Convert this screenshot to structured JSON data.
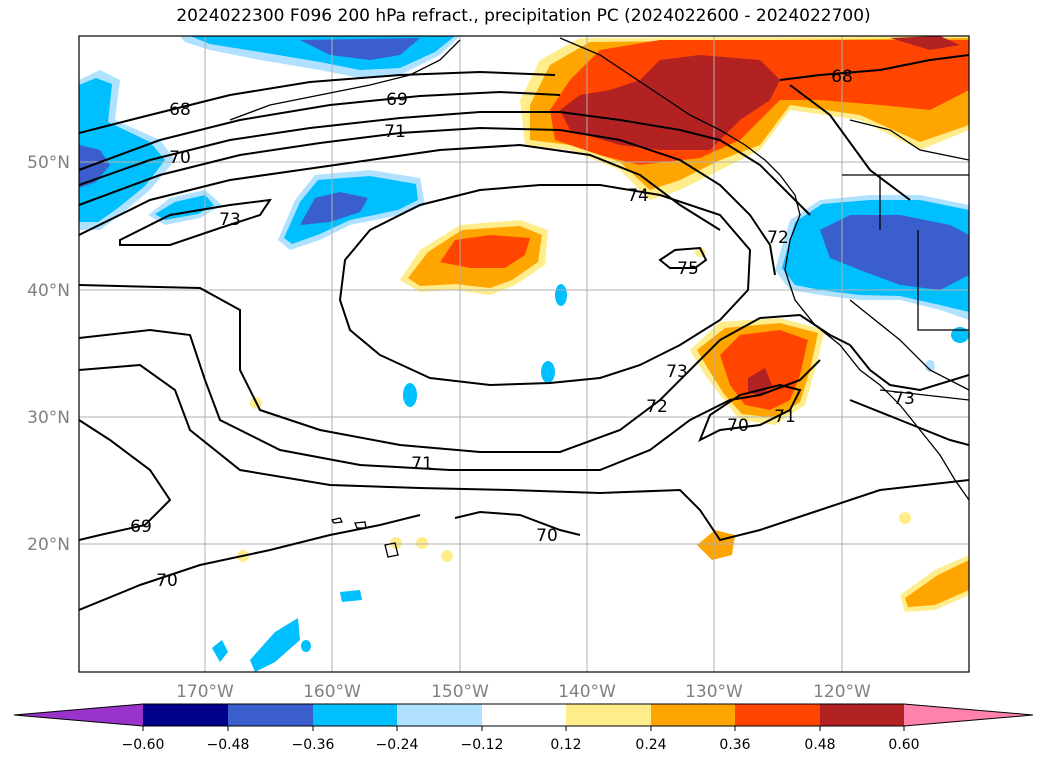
{
  "title": "2024022300 F096 200 hPa refract., precipitation PC (2024022600 - 2024022700)",
  "axes": {
    "lat_labels": [
      "50°N",
      "40°N",
      "30°N",
      "20°N"
    ],
    "lon_labels": [
      "170°W",
      "160°W",
      "150°W",
      "140°W",
      "130°W",
      "120°W"
    ]
  },
  "contour_labels": [
    "68",
    "69",
    "70",
    "71",
    "73",
    "74",
    "75",
    "72",
    "73",
    "72",
    "71",
    "70",
    "71",
    "68",
    "73",
    "69",
    "70",
    "70"
  ],
  "colorbar": {
    "ticks": [
      "−0.60",
      "−0.48",
      "−0.36",
      "−0.24",
      "−0.12",
      "0.12",
      "0.24",
      "0.36",
      "0.48",
      "0.60"
    ],
    "colors": [
      "#9933cc",
      "#00008b",
      "#3a5fcd",
      "#00bfff",
      "#b0e2ff",
      "#ffffff",
      "#ffec8b",
      "#ffa500",
      "#ff4500",
      "#b22222",
      "#ff82ab"
    ]
  },
  "colors": {
    "neg_light": "#b0e2ff",
    "neg_mid": "#00bfff",
    "neg_strong": "#3a5fcd",
    "pos_light": "#ffec8b",
    "pos_mid": "#ffa500",
    "pos_strong": "#ff4500",
    "pos_max": "#b22222"
  }
}
